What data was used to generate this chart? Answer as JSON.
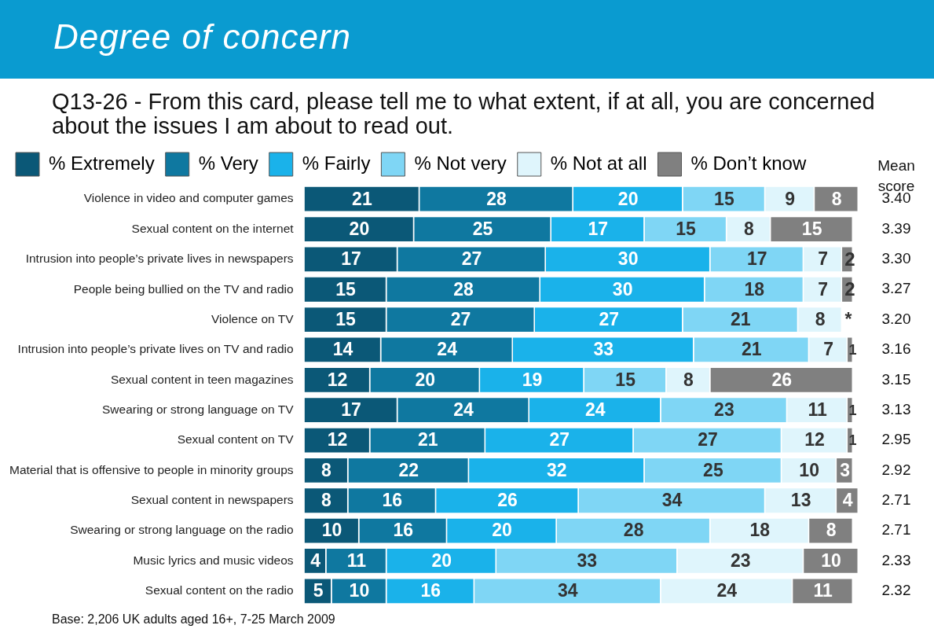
{
  "chart_data": {
    "type": "bar",
    "orientation": "horizontal",
    "stacked": true,
    "title": "Degree of concern",
    "subtitle": "Q13-26 - From this card, please tell me to what extent, if at all, you are concerned about the issues I am about to read out.",
    "categories": [
      "Violence in video and computer games",
      "Sexual content on the internet",
      "Intrusion into people’s private lives in newspapers",
      "People being bullied on the TV and radio",
      "Violence on TV",
      "Intrusion into people’s private lives on TV and radio",
      "Sexual content in teen magazines",
      "Swearing or strong language on TV",
      "Sexual content on TV",
      "Material that is offensive to people in minority groups",
      "Sexual content in newspapers",
      "Swearing or strong language on the radio",
      "Music lyrics and music videos",
      "Sexual content on the radio"
    ],
    "series": [
      {
        "name": "% Extremely",
        "color": "#0b5877",
        "values": [
          21,
          20,
          17,
          15,
          15,
          14,
          12,
          17,
          12,
          8,
          8,
          10,
          4,
          5
        ],
        "value_labels": [
          "21",
          "20",
          "17",
          "15",
          "15",
          "14",
          "12",
          "17",
          "12",
          "8",
          "8",
          "10",
          "4",
          "5"
        ]
      },
      {
        "name": "% Very",
        "color": "#0f78a0",
        "values": [
          28,
          25,
          27,
          28,
          27,
          24,
          20,
          24,
          21,
          22,
          16,
          16,
          11,
          10
        ],
        "value_labels": [
          "28",
          "25",
          "27",
          "28",
          "27",
          "24",
          "20",
          "24",
          "21",
          "22",
          "16",
          "16",
          "11",
          "10"
        ]
      },
      {
        "name": "% Fairly",
        "color": "#1ab2ea",
        "values": [
          20,
          17,
          30,
          30,
          27,
          33,
          19,
          24,
          27,
          32,
          26,
          20,
          20,
          16
        ],
        "value_labels": [
          "20",
          "17",
          "30",
          "30",
          "27",
          "33",
          "19",
          "24",
          "27",
          "32",
          "26",
          "20",
          "20",
          "16"
        ]
      },
      {
        "name": "% Not very",
        "color": "#7fd6f5",
        "values": [
          15,
          15,
          17,
          18,
          21,
          21,
          15,
          23,
          27,
          25,
          34,
          28,
          33,
          34
        ],
        "value_labels": [
          "15",
          "15",
          "17",
          "18",
          "21",
          "21",
          "15",
          "23",
          "27",
          "25",
          "34",
          "28",
          "33",
          "34"
        ]
      },
      {
        "name": "% Not at all",
        "color": "#dff5fc",
        "values": [
          9,
          8,
          7,
          7,
          8,
          7,
          8,
          11,
          12,
          10,
          13,
          18,
          23,
          24
        ],
        "value_labels": [
          "9",
          "8",
          "7",
          "7",
          "8",
          "7",
          "8",
          "11",
          "12",
          "10",
          "13",
          "18",
          "23",
          "24"
        ]
      },
      {
        "name": "% Don’t know",
        "color": "#808080",
        "values": [
          8,
          15,
          2,
          2,
          0,
          1,
          26,
          1,
          1,
          3,
          4,
          8,
          10,
          11
        ],
        "value_labels": [
          "8",
          "15",
          "2",
          "2",
          "*",
          "1",
          "26",
          "1",
          "1",
          "3",
          "4",
          "8",
          "10",
          "11"
        ]
      }
    ],
    "xlim": [
      0,
      101
    ],
    "tick_labels": "y",
    "legend": "top",
    "annotations": [
      "Mean score",
      "Base: 2,206 UK adults aged 16+, 7-25 March 2009",
      "3.40",
      "3.39",
      "3.30",
      "3.27",
      "3.20",
      "3.16",
      "3.15",
      "3.13",
      "2.95",
      "2.92",
      "2.71",
      "2.71",
      "2.33",
      "2.32"
    ]
  }
}
